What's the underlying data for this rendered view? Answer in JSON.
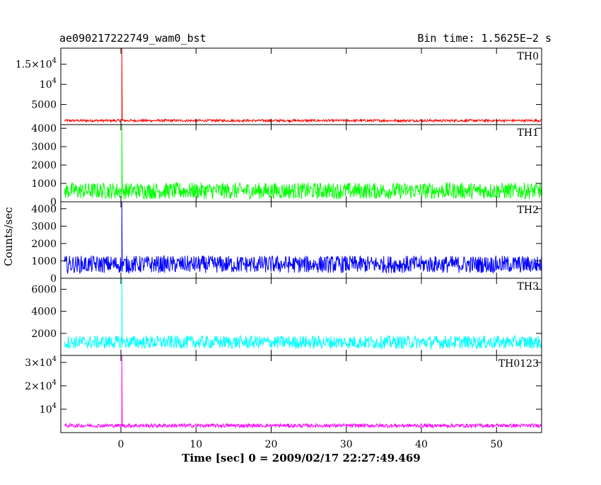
{
  "title": "ae090217222749_wam0_bst",
  "bin_time": "Bin time: 1.5625E−2 s",
  "ylabel": "Counts/sec",
  "xlabel": "Time [sec] 0 = 2009/02/17 22:27:49.469",
  "chart_data": {
    "type": "line",
    "grid": false,
    "x_range": [
      -8,
      56
    ],
    "x_ticks": [
      0,
      10,
      20,
      30,
      40,
      50
    ],
    "x_tick_labels": [
      "0",
      "10",
      "20",
      "30",
      "40",
      "50"
    ],
    "burst_time": 0.1,
    "panels": [
      {
        "name": "TH0",
        "color": "#ff0000",
        "ylim": [
          0,
          19000
        ],
        "yticks": [
          {
            "value": 5000,
            "mant": "5000",
            "exp": ""
          },
          {
            "value": 10000,
            "mant": "10",
            "exp": "4"
          },
          {
            "value": 15000,
            "mant": "1.5×10",
            "exp": "4"
          }
        ],
        "baseline": 1000,
        "noise": 300,
        "peak": 19000
      },
      {
        "name": "TH1",
        "color": "#00ff00",
        "ylim": [
          0,
          4200
        ],
        "yticks": [
          {
            "value": 0,
            "mant": "0",
            "exp": ""
          },
          {
            "value": 1000,
            "mant": "1000",
            "exp": ""
          },
          {
            "value": 2000,
            "mant": "2000",
            "exp": ""
          },
          {
            "value": 3000,
            "mant": "3000",
            "exp": ""
          },
          {
            "value": 4000,
            "mant": "4000",
            "exp": ""
          }
        ],
        "baseline": 600,
        "noise": 450,
        "peak": 4200
      },
      {
        "name": "TH2",
        "color": "#0000ff",
        "ylim": [
          0,
          4400
        ],
        "yticks": [
          {
            "value": 0,
            "mant": "0",
            "exp": ""
          },
          {
            "value": 1000,
            "mant": "1000",
            "exp": ""
          },
          {
            "value": 2000,
            "mant": "2000",
            "exp": ""
          },
          {
            "value": 3000,
            "mant": "3000",
            "exp": ""
          },
          {
            "value": 4000,
            "mant": "4000",
            "exp": ""
          }
        ],
        "baseline": 800,
        "noise": 500,
        "peak": 4400
      },
      {
        "name": "TH3",
        "color": "#00ffff",
        "ylim": [
          0,
          7000
        ],
        "yticks": [
          {
            "value": 2000,
            "mant": "2000",
            "exp": ""
          },
          {
            "value": 4000,
            "mant": "4000",
            "exp": ""
          },
          {
            "value": 6000,
            "mant": "6000",
            "exp": ""
          }
        ],
        "baseline": 1200,
        "noise": 600,
        "peak": 7000
      },
      {
        "name": "TH0123",
        "color": "#ff00ff",
        "ylim": [
          0,
          33000
        ],
        "yticks": [
          {
            "value": 10000,
            "mant": "10",
            "exp": "4"
          },
          {
            "value": 20000,
            "mant": "2×10",
            "exp": "4"
          },
          {
            "value": 30000,
            "mant": "3×10",
            "exp": "4"
          }
        ],
        "baseline": 3000,
        "noise": 800,
        "peak": 33000
      }
    ]
  }
}
